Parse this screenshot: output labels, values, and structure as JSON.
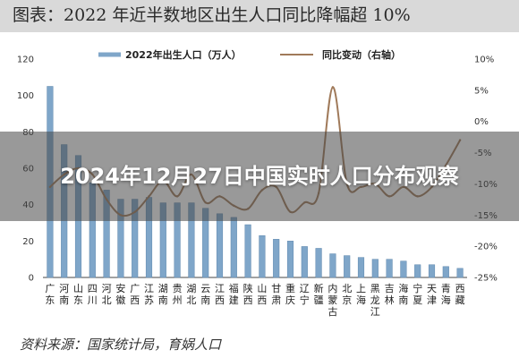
{
  "title_bar": {
    "text": "图表：2022 年近半数地区出生人口同比降幅超 10%"
  },
  "headline": {
    "text": "2024年12月27日中国实时人口分布观察"
  },
  "source": {
    "text": "资料来源：国家统计局，育娲人口"
  },
  "chart_data": {
    "type": "bar",
    "title": "",
    "categories": [
      "广东",
      "河南",
      "山东",
      "四川",
      "河北",
      "安徽",
      "广西",
      "江苏",
      "湖南",
      "贵州",
      "湖北",
      "云南",
      "江西",
      "福建",
      "陕西",
      "山西",
      "甘肃",
      "重庆",
      "辽宁",
      "新疆",
      "内蒙古",
      "北京",
      "上海",
      "黑龙江",
      "吉林",
      "海南",
      "宁夏",
      "天津",
      "青海",
      "西藏"
    ],
    "series": [
      {
        "name": "2022年出生人口（万人）",
        "type": "bar",
        "axis": "left",
        "color": "#7fa6c9",
        "values": [
          105,
          73,
          67,
          52,
          48,
          43,
          43,
          44,
          41,
          41,
          41,
          38,
          35,
          33,
          29,
          23,
          21,
          20,
          17,
          16,
          13,
          12,
          11,
          10,
          10,
          9,
          7,
          7,
          6,
          5
        ]
      },
      {
        "name": "同比变动（右轴）",
        "type": "line",
        "axis": "right",
        "color": "#a07a5a",
        "values": [
          -10.5,
          -8.5,
          -7.5,
          -8.5,
          -12.5,
          -15,
          -14.5,
          -12,
          -9.5,
          -12,
          -8.5,
          -13,
          -12,
          -13.5,
          -14,
          -11,
          -10.5,
          -14.5,
          -13,
          -11.5,
          5.5,
          -10,
          -10.5,
          -10,
          -12,
          -10.5,
          -12,
          -10.5,
          -7,
          -3
        ]
      }
    ],
    "left_axis": {
      "ylim": [
        0,
        120
      ],
      "ticks": [
        0,
        20,
        40,
        60,
        80,
        100,
        120
      ]
    },
    "right_axis": {
      "ylim": [
        -25,
        10
      ],
      "ticks": [
        -25,
        -20,
        -15,
        -10,
        -5,
        0,
        5,
        10
      ],
      "tick_labels": [
        "-25%",
        "-20%",
        "-15%",
        "-10%",
        "-5%",
        "0%",
        "5%",
        "10%"
      ]
    },
    "legend": {
      "placement": "top"
    },
    "grid": false
  }
}
